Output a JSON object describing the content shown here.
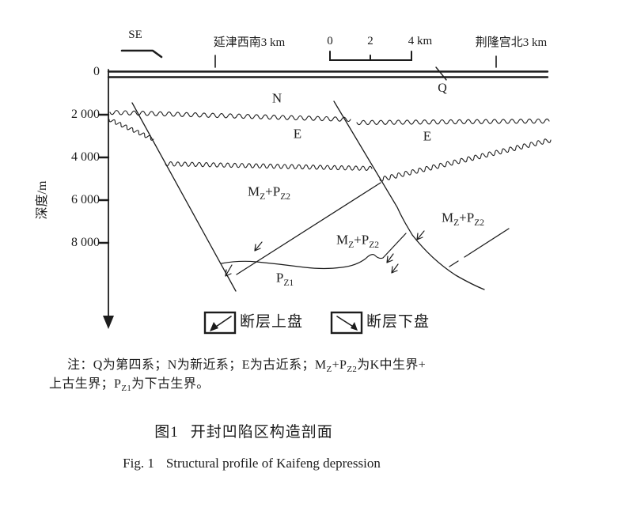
{
  "figure": {
    "direction": "SE",
    "location_left": "延津西南3 km",
    "location_right": "荆隆宫北3 km",
    "scale_ticks": {
      "t0": "0",
      "t2": "2",
      "t4": "4 km"
    },
    "depth_axis": {
      "label": "深度/m",
      "ticks": {
        "d0": "0",
        "d2000": "2 000",
        "d4000": "4 000",
        "d6000": "6 000",
        "d8000": "8 000"
      }
    },
    "strata": {
      "q": "Q",
      "n": "N",
      "e": "E",
      "mzpz2": {
        "m": "M",
        "m_sub": "Z",
        "p": "+P",
        "p_sub": "Z2"
      },
      "pz1": {
        "p": "P",
        "p_sub": "Z1"
      }
    },
    "legend": {
      "hanging_wall": "断层上盘",
      "footwall": "断层下盘"
    }
  },
  "note": {
    "line1_prefix": "注：Q为第四系；N为新近系；E为古近系；",
    "line1_suffix": "为K中生界+",
    "line2_prefix": "上古生界；",
    "line2_suffix": "为下古生界。"
  },
  "caption": {
    "zh_label": "图1",
    "zh_title": "开封凹陷区构造剖面",
    "en_label": "Fig. 1",
    "en_title": "Structural profile of Kaifeng depression"
  },
  "colors": {
    "ink": "#1c1c1c",
    "background": "#ffffff"
  }
}
